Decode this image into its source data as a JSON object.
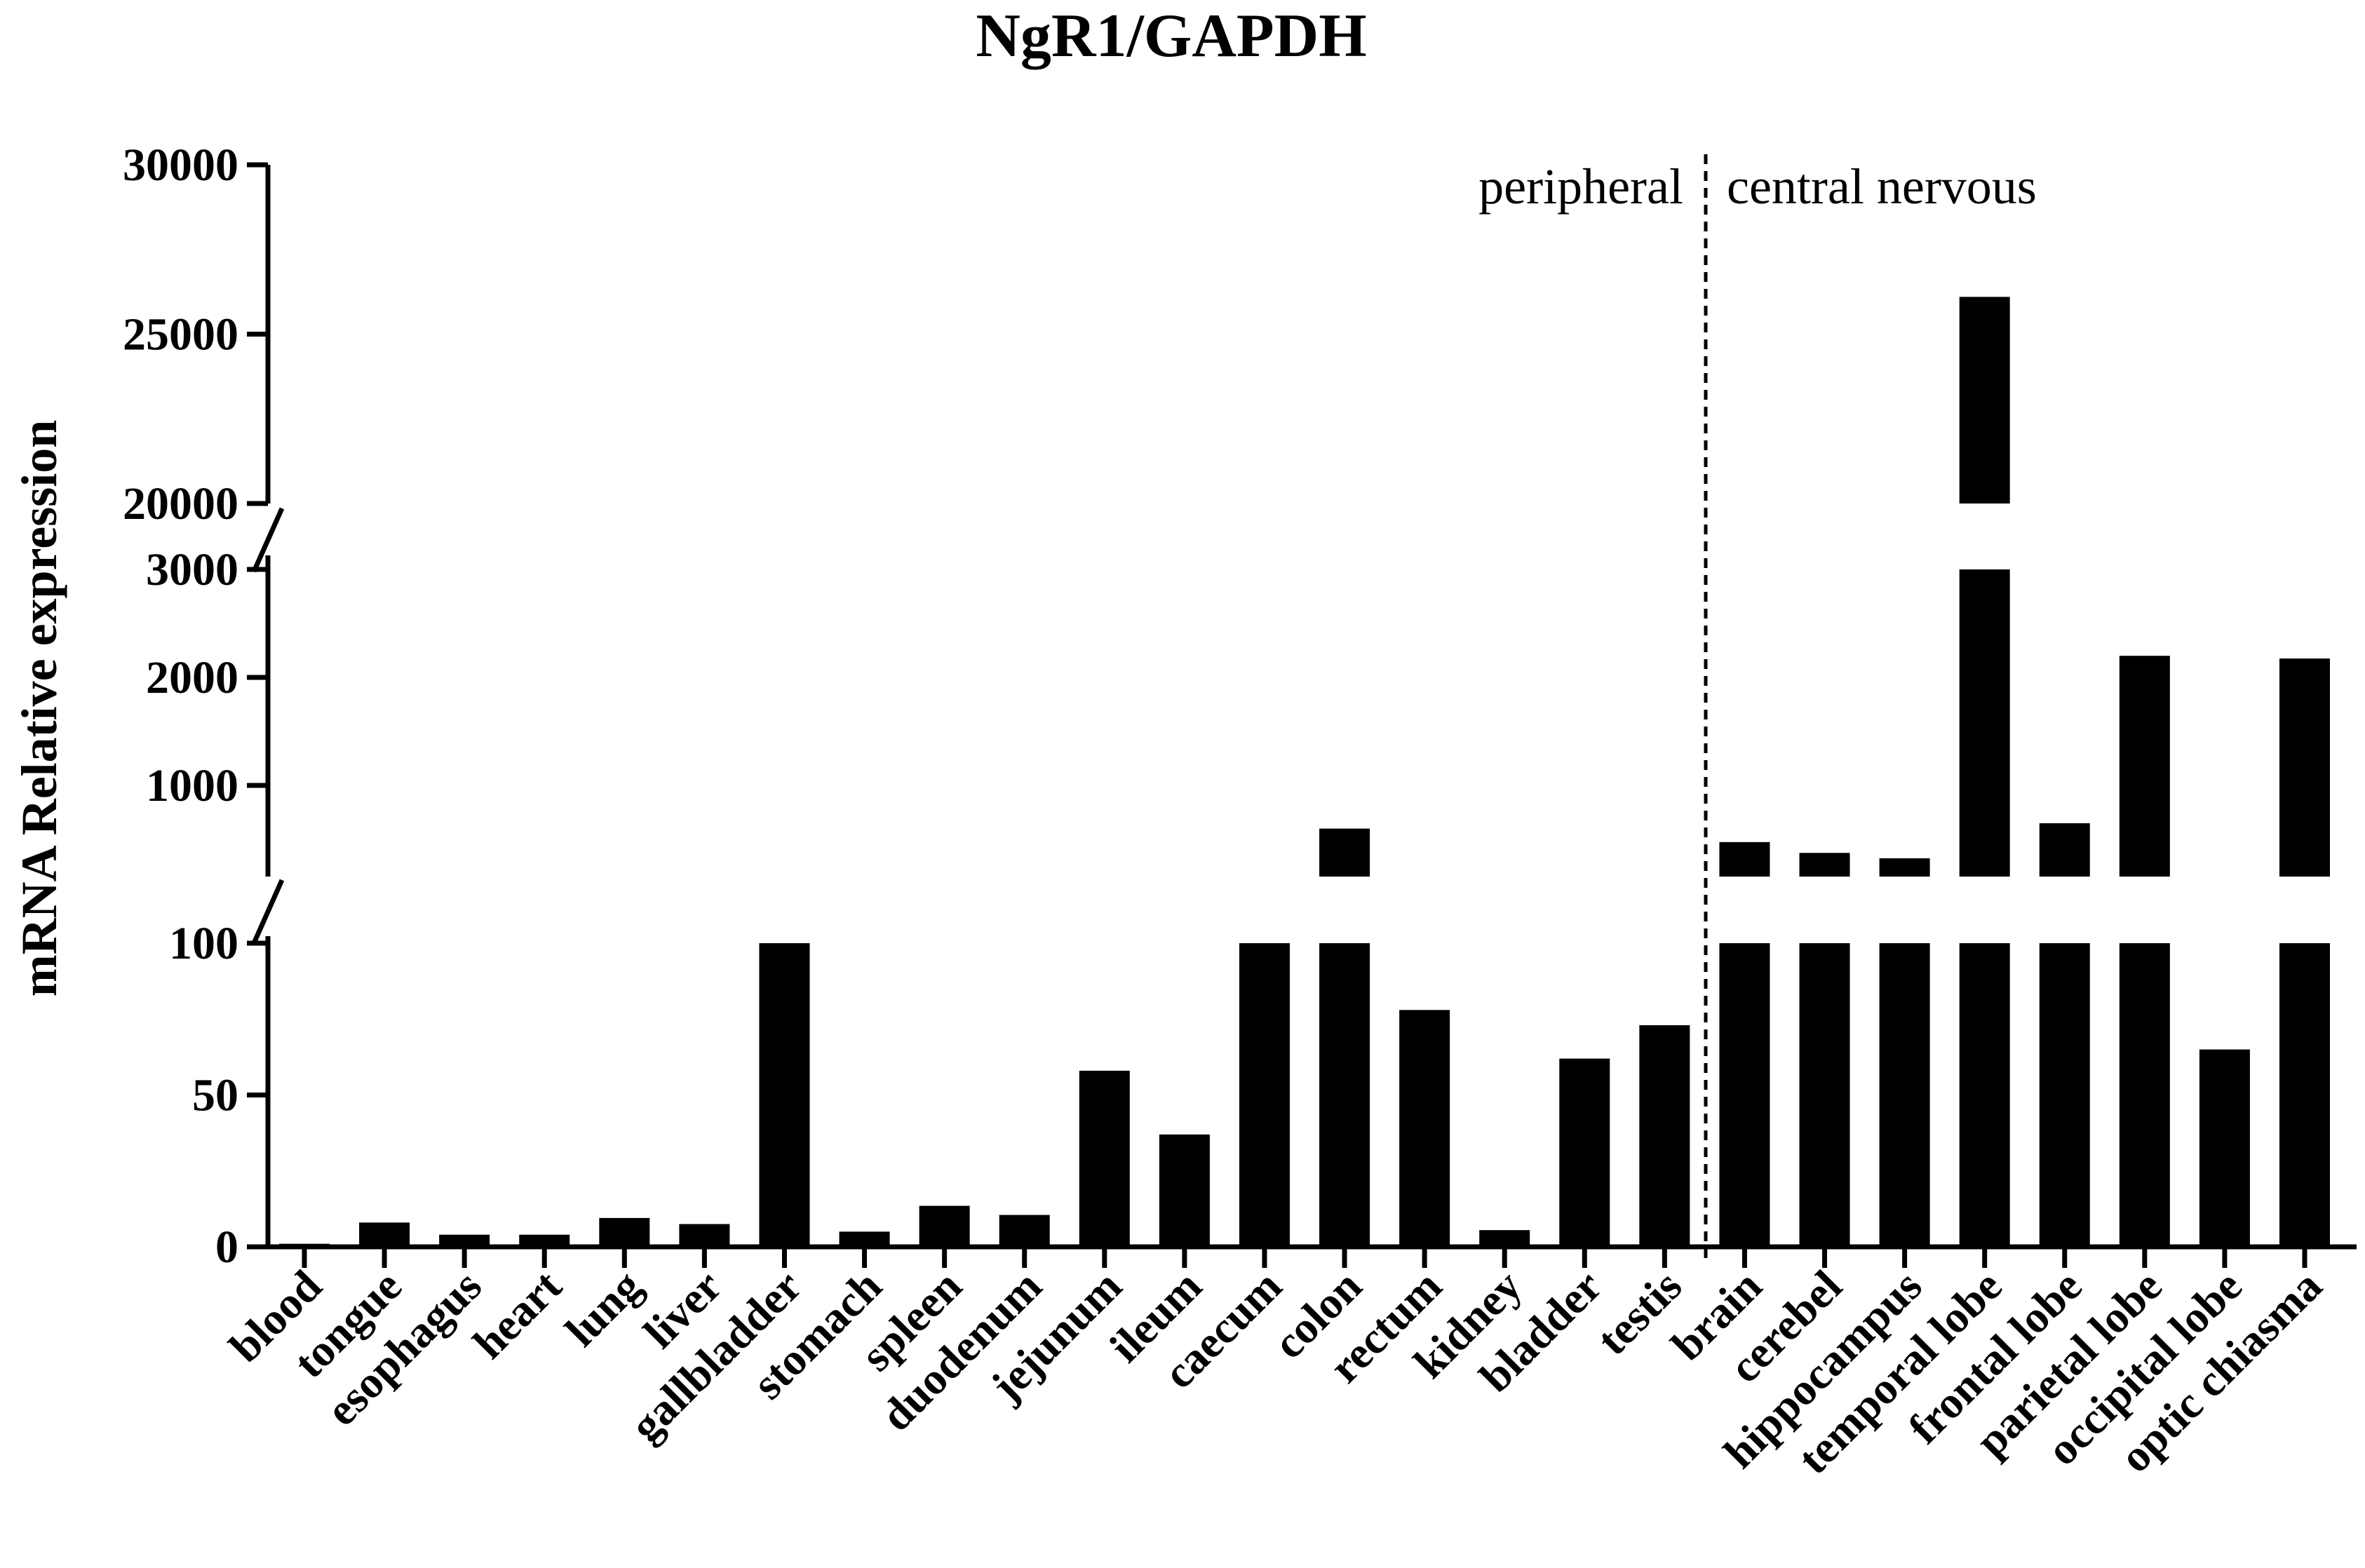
{
  "chart_data": {
    "type": "bar",
    "title": "NgR1/GAPDH",
    "xlabel": "",
    "ylabel": "mRNA Relative expression",
    "y_axis_breaks": [
      {
        "segment": "lower",
        "ylim": [
          0,
          100
        ],
        "ticks": [
          "0",
          "50",
          "100"
        ]
      },
      {
        "segment": "middle",
        "ylim": [
          100,
          3000
        ],
        "ticks": [
          "1000",
          "2000",
          "3000"
        ]
      },
      {
        "segment": "upper",
        "ylim": [
          20000,
          30000
        ],
        "ticks": [
          "20000",
          "25000",
          "30000"
        ]
      }
    ],
    "categories": [
      "blood",
      "tongue",
      "esophagus",
      "heart",
      "lung",
      "liver",
      "gallbladder",
      "stomach",
      "spleen",
      "duodenum",
      "jejunum",
      "ileum",
      "caecum",
      "colon",
      "rectum",
      "kidney",
      "bladder",
      "testis",
      "brain",
      "cerebel",
      "hippocampus",
      "temporal lobe",
      "frontal lobe",
      "parietal lobe",
      "occipital lobe",
      "optic chiasma"
    ],
    "values": [
      1,
      8,
      4,
      4,
      9.5,
      7.5,
      100,
      5,
      13.5,
      10.5,
      58,
      37,
      150,
      600,
      78,
      5.5,
      62,
      73,
      475,
      375,
      325,
      26100,
      650,
      2200,
      65,
      2175
    ],
    "region_labels": [
      "peripheral",
      "central nervous"
    ],
    "region_divider_after": "testis",
    "grid": false,
    "bar_color": "#000000"
  }
}
